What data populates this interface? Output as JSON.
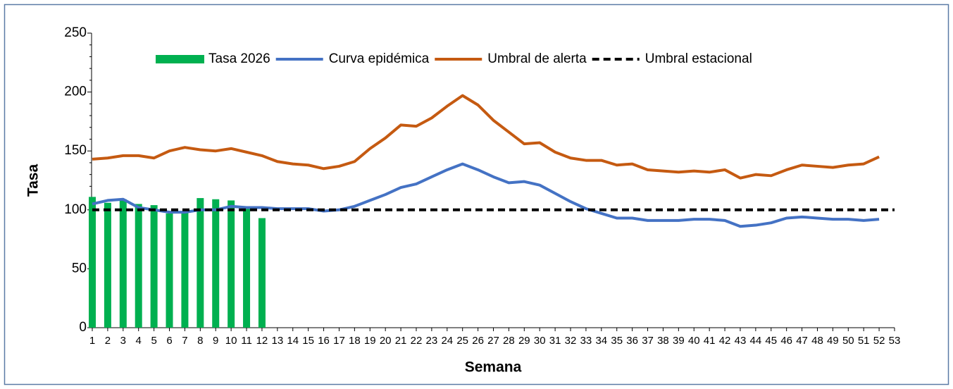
{
  "chart_data": {
    "type": "combo",
    "x_label": "Semana",
    "y_label": "Tasa",
    "x": [
      1,
      2,
      3,
      4,
      5,
      6,
      7,
      8,
      9,
      10,
      11,
      12,
      13,
      14,
      15,
      16,
      17,
      18,
      19,
      20,
      21,
      22,
      23,
      24,
      25,
      26,
      27,
      28,
      29,
      30,
      31,
      32,
      33,
      34,
      35,
      36,
      37,
      38,
      39,
      40,
      41,
      42,
      43,
      44,
      45,
      46,
      47,
      48,
      49,
      50,
      51,
      52,
      53
    ],
    "xlim": [
      1,
      53
    ],
    "ylim": [
      0,
      250
    ],
    "yticks": [
      0,
      50,
      100,
      150,
      200,
      250
    ],
    "series": [
      {
        "name": "Tasa 2026",
        "style": "bar",
        "color": "#00b050",
        "values": [
          111,
          106,
          109,
          105,
          104,
          97,
          98,
          110,
          109,
          108,
          101,
          93,
          null,
          null,
          null,
          null,
          null,
          null,
          null,
          null,
          null,
          null,
          null,
          null,
          null,
          null,
          null,
          null,
          null,
          null,
          null,
          null,
          null,
          null,
          null,
          null,
          null,
          null,
          null,
          null,
          null,
          null,
          null,
          null,
          null,
          null,
          null,
          null,
          null,
          null,
          null,
          null,
          null
        ]
      },
      {
        "name": "Curva epidémica",
        "style": "line",
        "color": "#4472c4",
        "values": [
          105,
          108,
          109,
          102,
          100,
          98,
          98,
          100,
          100,
          103,
          102,
          102,
          101,
          101,
          101,
          99,
          100,
          103,
          108,
          113,
          119,
          122,
          128,
          134,
          139,
          134,
          128,
          123,
          124,
          121,
          114,
          107,
          101,
          97,
          93,
          93,
          91,
          91,
          91,
          92,
          92,
          91,
          86,
          87,
          89,
          93,
          94,
          93,
          92,
          92,
          91,
          92,
          null
        ]
      },
      {
        "name": "Umbral de alerta",
        "style": "line",
        "color": "#c55a11",
        "values": [
          143,
          144,
          146,
          146,
          144,
          150,
          153,
          151,
          150,
          152,
          149,
          146,
          141,
          139,
          138,
          135,
          137,
          141,
          152,
          161,
          172,
          171,
          178,
          188,
          197,
          189,
          176,
          166,
          156,
          157,
          149,
          144,
          142,
          142,
          138,
          139,
          134,
          133,
          132,
          133,
          132,
          134,
          127,
          130,
          129,
          134,
          138,
          137,
          136,
          138,
          139,
          145,
          null
        ]
      },
      {
        "name": "Umbral estacional",
        "style": "dashed",
        "color": "#000000",
        "values": [
          100,
          100,
          100,
          100,
          100,
          100,
          100,
          100,
          100,
          100,
          100,
          100,
          100,
          100,
          100,
          100,
          100,
          100,
          100,
          100,
          100,
          100,
          100,
          100,
          100,
          100,
          100,
          100,
          100,
          100,
          100,
          100,
          100,
          100,
          100,
          100,
          100,
          100,
          100,
          100,
          100,
          100,
          100,
          100,
          100,
          100,
          100,
          100,
          100,
          100,
          100,
          100,
          100
        ]
      }
    ]
  }
}
